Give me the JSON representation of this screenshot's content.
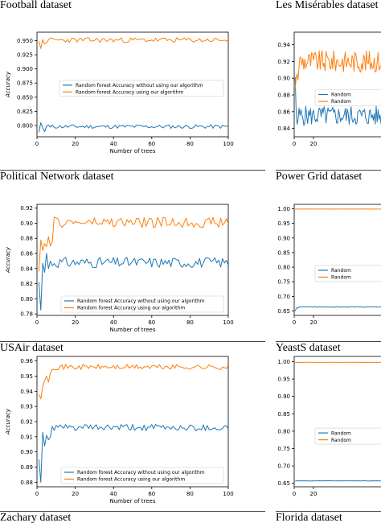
{
  "captions": [
    "Football dataset",
    "Les Misérables dataset",
    "Political Network dataset",
    "Power Grid dataset",
    "USAir dataset",
    "YeastS dataset",
    "Zachary dataset",
    "Florida dataset"
  ],
  "colors": {
    "blue": "#1f77b4",
    "orange": "#ff7f0e"
  },
  "chart_data": [
    {
      "type": "line",
      "panel": "left-1",
      "xlabel": "Number of trees",
      "ylabel": "Accuracy",
      "xlim": [
        0,
        100
      ],
      "ylim": [
        0.78,
        0.965
      ],
      "xticks": [
        0,
        20,
        40,
        60,
        80,
        100
      ],
      "yticks": [
        0.8,
        0.825,
        0.85,
        0.875,
        0.9,
        0.925,
        0.95
      ],
      "ytick_labels": [
        "0.800",
        "0.825",
        "0.850",
        "0.875",
        "0.900",
        "0.925",
        "0.950"
      ],
      "legend": "center-right",
      "series": [
        {
          "name": "Random  forest Accuracy without using our algorithm",
          "color": "blue",
          "base": 0.798,
          "amp": 0.0035,
          "seed": 11,
          "start": [
            0.788,
            0.805,
            0.796,
            0.789,
            0.799,
            0.801,
            0.797
          ]
        },
        {
          "name": "Random  forest Accuracy using our algorithm",
          "color": "orange",
          "base": 0.951,
          "amp": 0.0045,
          "seed": 23,
          "start": [
            0.949,
            0.936,
            0.952,
            0.944,
            0.947,
            0.951
          ]
        }
      ]
    },
    {
      "type": "line",
      "panel": "right-1",
      "xlabel": "",
      "ylabel": "",
      "xlim": [
        0,
        100
      ],
      "ylim": [
        0.83,
        0.955
      ],
      "xticks": [
        0,
        20
      ],
      "yticks": [
        0.84,
        0.86,
        0.88,
        0.9,
        0.92,
        0.94
      ],
      "ytick_labels": [
        "0.84",
        "0.86",
        "0.88",
        "0.90",
        "0.92",
        "0.94"
      ],
      "legend_label": "Random",
      "series": [
        {
          "name": "",
          "color": "blue",
          "base": 0.855,
          "amp": 0.012,
          "seed": 5,
          "start": [
            0.901,
            0.862,
            0.845,
            0.85
          ]
        },
        {
          "name": "",
          "color": "orange",
          "base": 0.92,
          "amp": 0.013,
          "seed": 9,
          "start": [
            0.886,
            0.9,
            0.905,
            0.898
          ]
        }
      ]
    },
    {
      "type": "line",
      "panel": "left-2",
      "xlabel": "Number of trees",
      "ylabel": "Accuracy",
      "xlim": [
        0,
        100
      ],
      "ylim": [
        0.778,
        0.925
      ],
      "xticks": [
        0,
        20,
        40,
        60,
        80,
        100
      ],
      "yticks": [
        0.78,
        0.8,
        0.82,
        0.84,
        0.86,
        0.88,
        0.9,
        0.92
      ],
      "ytick_labels": [
        "0.78",
        "0.80",
        "0.82",
        "0.84",
        "0.86",
        "0.88",
        "0.90",
        "0.92"
      ],
      "legend": "lower-center",
      "series": [
        {
          "name": "Random  forest Accuracy without using our algorithm",
          "color": "blue",
          "base": 0.848,
          "amp": 0.007,
          "seed": 31,
          "start": [
            0.822,
            0.785,
            0.847,
            0.835,
            0.86,
            0.84
          ]
        },
        {
          "name": "Random  forest Accuracy using our algorithm",
          "color": "orange",
          "base": 0.901,
          "amp": 0.007,
          "seed": 47,
          "start": [
            0.836,
            0.878,
            0.864,
            0.873,
            0.869,
            0.882,
            0.87,
            0.875
          ]
        }
      ]
    },
    {
      "type": "line",
      "panel": "right-2",
      "xlabel": "",
      "ylabel": "",
      "xlim": [
        0,
        100
      ],
      "ylim": [
        0.635,
        1.015
      ],
      "xticks": [
        0,
        20
      ],
      "yticks": [
        0.65,
        0.7,
        0.75,
        0.8,
        0.85,
        0.9,
        0.95,
        1.0
      ],
      "ytick_labels": [
        "0.65",
        "0.70",
        "0.75",
        "0.80",
        "0.85",
        "0.90",
        "0.95",
        "1.00"
      ],
      "legend_label": "Random",
      "series": [
        {
          "name": "",
          "color": "blue",
          "base": 0.664,
          "amp": 0.0012,
          "seed": 3,
          "start": [
            0.65,
            0.658,
            0.662,
            0.66
          ]
        },
        {
          "name": "",
          "color": "orange",
          "base": 0.999,
          "amp": 0.0002,
          "seed": 4,
          "start": [
            0.999
          ]
        }
      ]
    },
    {
      "type": "line",
      "panel": "left-3",
      "xlabel": "Number of trees",
      "ylabel": "Accuracy",
      "xlim": [
        0,
        100
      ],
      "ylim": [
        0.877,
        0.963
      ],
      "xticks": [
        0,
        20,
        40,
        60,
        80,
        100
      ],
      "yticks": [
        0.88,
        0.89,
        0.9,
        0.91,
        0.92,
        0.93,
        0.94,
        0.95,
        0.96
      ],
      "ytick_labels": [
        "0.88",
        "0.89",
        "0.90",
        "0.91",
        "0.92",
        "0.93",
        "0.94",
        "0.95",
        "0.96"
      ],
      "legend": "lower-center",
      "series": [
        {
          "name": "Random  forest Accuracy without using our algorithm",
          "color": "blue",
          "base": 0.916,
          "amp": 0.0022,
          "seed": 61,
          "start": [
            0.895,
            0.88,
            0.913,
            0.904,
            0.911,
            0.908,
            0.91
          ]
        },
        {
          "name": "Random  forest Accuracy using our algorithm",
          "color": "orange",
          "base": 0.956,
          "amp": 0.0018,
          "seed": 71,
          "start": [
            0.938,
            0.935,
            0.943,
            0.947,
            0.95,
            0.946,
            0.952
          ]
        }
      ]
    },
    {
      "type": "line",
      "panel": "right-3",
      "xlabel": "",
      "ylabel": "",
      "xlim": [
        0,
        100
      ],
      "ylim": [
        0.64,
        1.015
      ],
      "xticks": [
        0,
        20
      ],
      "yticks": [
        0.65,
        0.7,
        0.75,
        0.8,
        0.85,
        0.9,
        0.95,
        1.0
      ],
      "ytick_labels": [
        "0.65",
        "0.70",
        "0.75",
        "0.80",
        "0.85",
        "0.90",
        "0.95",
        "1.00"
      ],
      "legend_label": "Random",
      "series": [
        {
          "name": "",
          "color": "blue",
          "base": 0.657,
          "amp": 0.0006,
          "seed": 8,
          "start": [
            0.656
          ]
        },
        {
          "name": "",
          "color": "orange",
          "base": 0.998,
          "amp": 0.0002,
          "seed": 2,
          "start": [
            0.998
          ]
        }
      ]
    }
  ]
}
